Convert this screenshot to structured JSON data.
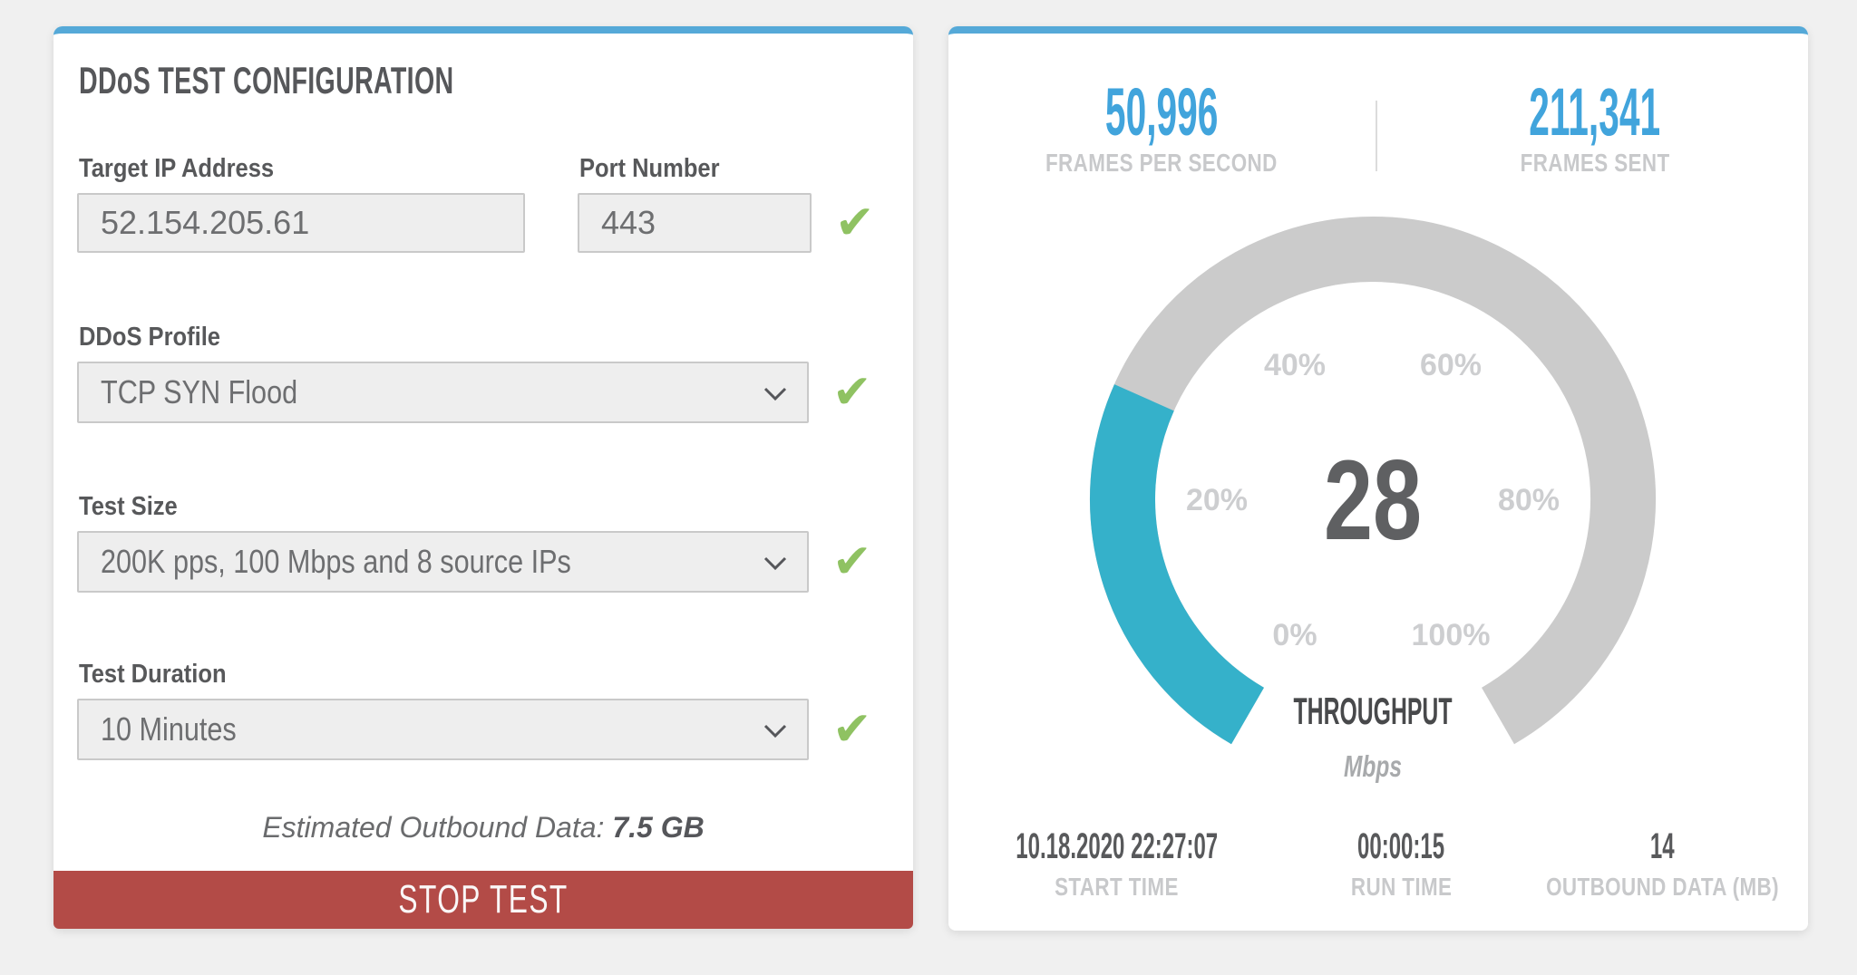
{
  "colors": {
    "accent_blue": "#41a4dc",
    "panel_border_blue": "#55a9d8",
    "gauge_fill_teal": "#35b1ca",
    "gauge_track_gray": "#cbcbcb",
    "check_green": "#8fc262",
    "stop_button_red": "#b34b47",
    "page_background": "#f0f0f0"
  },
  "icons": {
    "check": "✔"
  },
  "config": {
    "title": "DDoS TEST CONFIGURATION",
    "fields": {
      "ip": {
        "label": "Target IP Address",
        "value": "52.154.205.61",
        "valid": true
      },
      "port": {
        "label": "Port Number",
        "value": "443",
        "valid": true
      },
      "profile": {
        "label": "DDoS Profile",
        "value": "TCP SYN Flood",
        "valid": true
      },
      "size": {
        "label": "Test Size",
        "value": "200K pps, 100 Mbps and 8 source IPs",
        "valid": true
      },
      "duration": {
        "label": "Test Duration",
        "value": "10 Minutes",
        "valid": true
      }
    },
    "estimate_label": "Estimated Outbound Data:",
    "estimate_value": "7.5 GB",
    "stop_button": "STOP TEST"
  },
  "monitor": {
    "top_stats": [
      {
        "value": "50,996",
        "label": "FRAMES PER SECOND"
      },
      {
        "value": "211,341",
        "label": "FRAMES SENT"
      }
    ],
    "bottom_stats": [
      {
        "value": "10.18.2020 22:27:07",
        "label": "START TIME"
      },
      {
        "value": "00:00:15",
        "label": "RUN TIME"
      },
      {
        "value": "14",
        "label": "OUTBOUND DATA (MB)"
      }
    ]
  },
  "chart_data": {
    "type": "gauge",
    "title": "THROUGHPUT",
    "unit": "Mbps",
    "value": 28,
    "display_value": "28",
    "percent": 28,
    "min": 0,
    "max": 100,
    "ticks": [
      "0%",
      "20%",
      "40%",
      "60%",
      "80%",
      "100%"
    ],
    "start_angle": 210,
    "sweep": 300,
    "fill_color": "#35b1ca",
    "track_color": "#cbcbcb"
  }
}
